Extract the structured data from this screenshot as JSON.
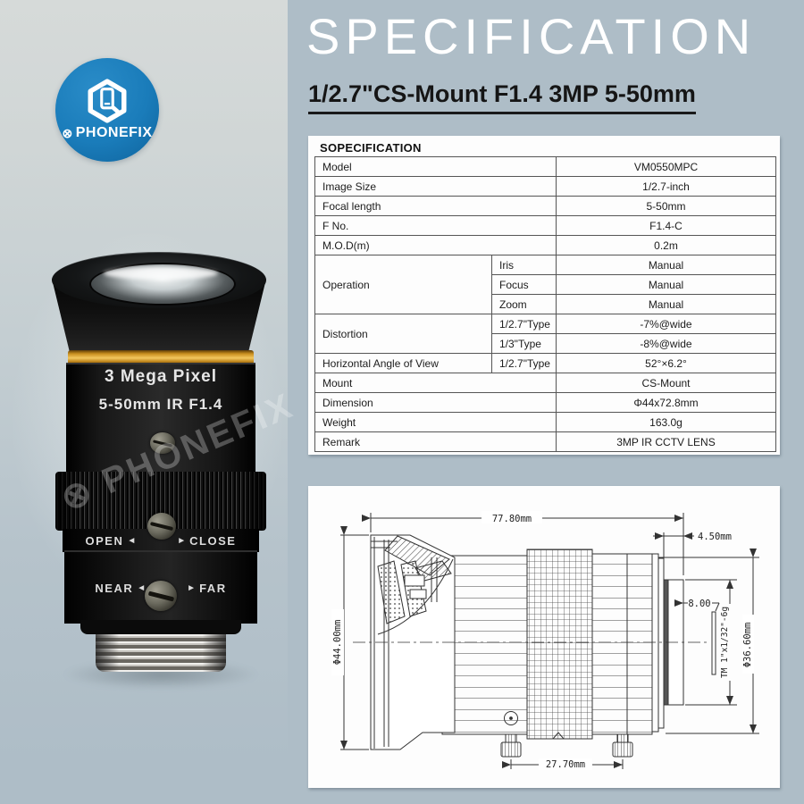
{
  "brand": {
    "mark": "⊗",
    "name": "PHONEFIX"
  },
  "accents": {
    "logo_blue": "#1a7cba",
    "gold_ring": "#e5a93f",
    "page_background": "#aebdc7"
  },
  "lens_photo": {
    "line1": "3 Mega Pixel",
    "line2": "5-50mm IR F1.4",
    "iris_left": "OPEN",
    "iris_right": "CLOSE",
    "focus_left": "NEAR",
    "focus_right": "FAR",
    "tri_left": "◄",
    "tri_right": "►",
    "watermark": "⊗ PHONEFIX"
  },
  "header": {
    "title": "SPECIFICATION",
    "subtitle": "1/2.7\"CS-Mount F1.4 3MP 5-50mm"
  },
  "spec_table": {
    "heading": "SOPECIFICATION",
    "rows": [
      {
        "label": "Model",
        "value": "VM0550MPC"
      },
      {
        "label": "Image Size",
        "value": "1/2.7-inch"
      },
      {
        "label": "Focal length",
        "value": "5-50mm"
      },
      {
        "label": "F No.",
        "value": "F1.4-C"
      },
      {
        "label": "M.O.D(m)",
        "value": "0.2m"
      },
      {
        "label": "Operation",
        "labelRowspan": 3,
        "sub": "Iris",
        "value": "Manual"
      },
      {
        "sub": "Focus",
        "value": "Manual"
      },
      {
        "sub": "Zoom",
        "value": "Manual"
      },
      {
        "label": "Distortion",
        "labelRowspan": 2,
        "sub": "1/2.7\"Type",
        "value": "-7%@wide"
      },
      {
        "sub": "1/3\"Type",
        "value": "-8%@wide"
      },
      {
        "label": "Horizontal Angle of View",
        "sub": "1/2.7\"Type",
        "value": "52°×6.2°"
      },
      {
        "label": "Mount",
        "value": "CS-Mount"
      },
      {
        "label": "Dimension",
        "value": "Φ44x72.8mm"
      },
      {
        "label": "Weight",
        "value": "163.0g"
      },
      {
        "label": "Remark",
        "value": "3MP IR CCTV LENS"
      }
    ]
  },
  "diagram": {
    "total_length": "77.80mm",
    "mount_length": "4.50mm",
    "pitch": "8.00",
    "thread_spec": "TM 1\"x1/32\"-6g",
    "mount_diameter": "Φ36.60mm",
    "body_diameter": "Φ44.00mm",
    "screw_span": "27.70mm"
  }
}
